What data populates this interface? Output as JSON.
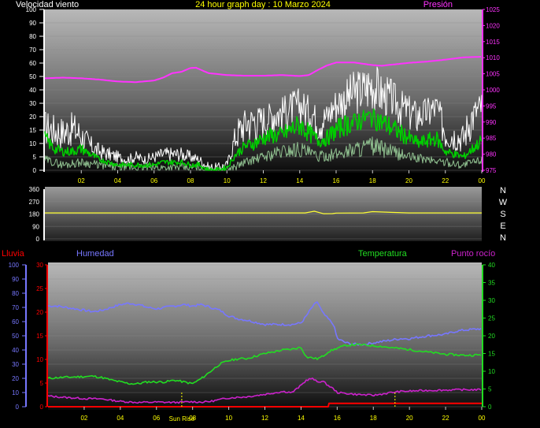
{
  "page": {
    "title": "24 hour graph day : 10 Marzo 2024",
    "sunrise_label": "Sun Rise",
    "compass": [
      "N",
      "W",
      "S",
      "E",
      "N"
    ]
  },
  "colors": {
    "title": "#ffff00",
    "wind_label": "#ffffff",
    "pressure": "#ff33ff",
    "wind_gust": "#ffffff",
    "wind_avg": "#00cc00",
    "wind_low": "#8fbf8f",
    "direction": "#ffff33",
    "rain": "#ff0000",
    "humidity": "#7777ff",
    "temperature": "#22dd22",
    "dewpoint": "#cc22cc",
    "x_tick": "#ffff00"
  },
  "chart_data": [
    {
      "type": "line",
      "name": "wind-pressure",
      "labels": {
        "left": "Velocidad viento",
        "right": "Presión"
      },
      "left_ticks": [
        "100",
        "90",
        "80",
        "70",
        "60",
        "50",
        "40",
        "30",
        "20",
        "15",
        "10",
        "5",
        "0"
      ],
      "right_ticks": [
        "1025",
        "1020",
        "1015",
        "1010",
        "1005",
        "1000",
        "995",
        "990",
        "985",
        "980",
        "975"
      ],
      "x_ticks": [
        "02",
        "04",
        "06",
        "08",
        "10",
        "12",
        "14",
        "16",
        "18",
        "20",
        "22",
        "00"
      ],
      "x_range": [
        0,
        24
      ],
      "pressure": {
        "ylim": [
          975,
          1025
        ],
        "x": [
          0,
          1,
          2,
          3,
          4,
          5,
          6,
          6.5,
          7,
          7.5,
          8,
          8.3,
          8.7,
          9,
          9.5,
          10,
          11,
          12,
          13,
          14,
          14.5,
          15,
          15.5,
          16,
          17,
          18,
          18.5,
          19,
          20,
          21,
          22,
          23,
          24
        ],
        "y": [
          1003.6,
          1003.8,
          1003.6,
          1003.2,
          1002.6,
          1002.4,
          1002.9,
          1003.8,
          1005.2,
          1005.6,
          1006.8,
          1006.9,
          1005.9,
          1005.2,
          1004.9,
          1004.6,
          1004.4,
          1004.4,
          1004.6,
          1004.3,
          1004.6,
          1006.2,
          1007.6,
          1008.5,
          1008.5,
          1007.7,
          1007.5,
          1007.8,
          1008.4,
          1008.8,
          1009.4,
          1010.1,
          1010.3
        ]
      },
      "wind_gust": {
        "x": [
          0,
          0.5,
          1,
          1.5,
          2,
          2.5,
          3,
          3.5,
          4,
          4.5,
          5,
          5.5,
          6,
          6.5,
          7,
          7.5,
          8,
          8.5,
          9,
          9.5,
          10,
          10.5,
          11,
          11.5,
          12,
          12.5,
          13,
          13.5,
          14,
          14.5,
          15,
          15.5,
          16,
          16.5,
          17,
          17.5,
          18,
          18.5,
          19,
          19.5,
          20,
          20.5,
          21,
          21.5,
          22,
          22.5,
          23,
          23.5,
          24
        ],
        "y": [
          17,
          15,
          14,
          16,
          13,
          9,
          7,
          6,
          5,
          4,
          5,
          4,
          5,
          6,
          6,
          6,
          5,
          4,
          1,
          1,
          2,
          13,
          18,
          19,
          20,
          22,
          24,
          27,
          29,
          25,
          19,
          21,
          30,
          33,
          38,
          40,
          45,
          36,
          34,
          28,
          25,
          22,
          24,
          27,
          14,
          13,
          12,
          22,
          28
        ]
      },
      "wind_avg": {
        "x": [
          0,
          0.5,
          1,
          1.5,
          2,
          2.5,
          3,
          3.5,
          4,
          4.5,
          5,
          5.5,
          6,
          6.5,
          7,
          7.5,
          8,
          8.5,
          9,
          9.5,
          10,
          10.5,
          11,
          11.5,
          12,
          12.5,
          13,
          13.5,
          14,
          14.5,
          15,
          15.5,
          16,
          16.5,
          17,
          17.5,
          18,
          18.5,
          19,
          19.5,
          20,
          20.5,
          21,
          21.5,
          22,
          22.5,
          23,
          23.5,
          24
        ],
        "y": [
          12,
          8,
          7,
          7,
          8,
          6,
          4,
          3,
          2,
          2,
          2,
          2,
          2,
          3,
          3,
          3,
          2,
          2,
          0,
          0,
          1,
          6,
          9,
          10,
          12,
          13,
          13,
          15,
          17,
          14,
          11,
          12,
          15,
          17,
          18,
          20,
          21,
          18,
          16,
          14,
          12,
          10,
          11,
          12,
          7,
          6,
          5,
          8,
          11
        ]
      },
      "wind_low": {
        "x": [
          0,
          1,
          2,
          3,
          4,
          5,
          6,
          7,
          8,
          9,
          10,
          11,
          12,
          13,
          14,
          15,
          16,
          17,
          18,
          19,
          20,
          21,
          22,
          23,
          24
        ],
        "y": [
          4,
          2,
          3,
          2,
          1,
          1,
          1,
          1,
          1,
          0,
          0,
          3,
          5,
          7,
          8,
          5,
          6,
          8,
          9,
          7,
          5,
          4,
          3,
          2,
          4
        ]
      }
    },
    {
      "type": "line",
      "name": "wind-direction",
      "y_ticks": [
        "360",
        "270",
        "180",
        "90",
        "0"
      ],
      "ylim": [
        0,
        360
      ],
      "x_range": [
        0,
        24
      ],
      "series": [
        {
          "name": "direction",
          "x": [
            0,
            6,
            12,
            14.3,
            14.8,
            15.3,
            15.8,
            16,
            17.5,
            18,
            19,
            20,
            24
          ],
          "y": [
            188,
            188,
            188,
            188,
            200,
            182,
            183,
            187,
            188,
            197,
            192,
            188,
            188
          ]
        }
      ]
    },
    {
      "type": "line",
      "name": "humidity-temperature",
      "labels": {
        "rain": "Lluvia",
        "humidity": "Humedad",
        "temperature": "Temperatura",
        "dewpoint": "Punto rocío"
      },
      "humidity_ticks": [
        "100",
        "90",
        "80",
        "70",
        "60",
        "50",
        "40",
        "30",
        "20",
        "10",
        "0"
      ],
      "rain_ticks": [
        "30",
        "25",
        "20",
        "15",
        "10",
        "5",
        "0"
      ],
      "temp_ticks": [
        "40",
        "35",
        "30",
        "25",
        "20",
        "15",
        "10",
        "5",
        "0"
      ],
      "x_ticks": [
        "02",
        "04",
        "06",
        "08",
        "10",
        "12",
        "14",
        "16",
        "18",
        "20",
        "22",
        "00"
      ],
      "x_range": [
        0,
        24
      ],
      "humidity": {
        "ylim": [
          0,
          100
        ],
        "x": [
          0,
          0.5,
          1,
          2,
          2.5,
          3,
          3.5,
          4,
          4.5,
          5,
          5.5,
          6,
          6.5,
          7,
          7.5,
          8,
          8.5,
          9,
          9.5,
          10,
          10.5,
          11,
          12,
          13,
          13.5,
          14,
          14.3,
          14.6,
          14.9,
          15.2,
          15.5,
          15.8,
          16,
          16.5,
          17,
          17.5,
          18,
          18.5,
          19,
          19.5,
          20,
          21,
          22,
          22.5,
          23,
          24
        ],
        "y": [
          71,
          71,
          70,
          68,
          67,
          68,
          70,
          72,
          73,
          72,
          70,
          69,
          70,
          71,
          72,
          71,
          72,
          70,
          68,
          64,
          62,
          61,
          58,
          58,
          58,
          59,
          64,
          70,
          74,
          66,
          62,
          58,
          48,
          45,
          44,
          44,
          45,
          46,
          47,
          48,
          48,
          50,
          51,
          53,
          54,
          55
        ]
      },
      "temperature": {
        "ylim": [
          0,
          40
        ],
        "x": [
          0,
          0.5,
          1,
          2,
          2.5,
          3,
          3.5,
          4,
          4.5,
          5,
          5.5,
          6,
          6.5,
          7,
          7.5,
          8,
          8.5,
          9,
          9.5,
          10,
          10.5,
          11,
          12,
          13,
          13.5,
          14,
          14.3,
          14.6,
          14.9,
          15.2,
          15.5,
          16,
          16.5,
          17,
          17.5,
          18,
          18.5,
          19,
          19.5,
          20,
          21,
          22,
          23,
          24
        ],
        "y": [
          8,
          8.2,
          8.3,
          8.5,
          8.6,
          8.2,
          7.5,
          7,
          6.5,
          6.5,
          7,
          7,
          7,
          7.5,
          7,
          6.5,
          8,
          10,
          12,
          13,
          13.5,
          13.6,
          15,
          16,
          16.2,
          16.8,
          14,
          13.8,
          13.5,
          14.2,
          15.5,
          16.5,
          17.3,
          17.5,
          17.4,
          17.2,
          17,
          16.6,
          16.4,
          16.1,
          15.4,
          14.8,
          14.5,
          14.6
        ]
      },
      "dewpoint": {
        "ylim": [
          0,
          40
        ],
        "x": [
          0,
          1,
          2,
          3,
          4,
          5,
          6,
          7,
          8,
          8.5,
          9,
          10,
          11,
          12,
          13,
          13.5,
          14,
          14.3,
          14.6,
          14.9,
          15.2,
          15.5,
          15.8,
          16,
          17,
          18,
          19,
          19.5,
          20,
          21,
          22,
          23,
          24
        ],
        "y": [
          3,
          2.6,
          2.3,
          2.2,
          1.5,
          1.2,
          1.3,
          1.2,
          1.4,
          1.3,
          1.5,
          2.5,
          2.8,
          3.5,
          4.3,
          4,
          6,
          7.5,
          8,
          7,
          7.2,
          6,
          5,
          4,
          3.5,
          3.2,
          4,
          4.3,
          4.4,
          4.6,
          4.7,
          4.8,
          4.8
        ]
      },
      "rain": {
        "ylim": [
          0,
          30
        ],
        "x": [
          0,
          15.5,
          15.55,
          24
        ],
        "y": [
          0,
          0,
          0.7,
          0.7
        ]
      },
      "sunrise_hour": 7.4,
      "marker_hour": 19.2
    }
  ]
}
